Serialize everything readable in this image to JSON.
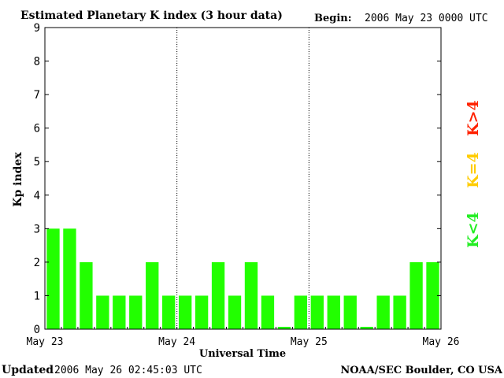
{
  "header": {
    "title": "Estimated Planetary K index (3 hour data)",
    "begin_label": "Begin:",
    "begin_value": "2006 May 23 0000 UTC"
  },
  "footer": {
    "updated_label": "Updated",
    "updated_value": "2006 May 26 02:45:03 UTC",
    "credit": "NOAA/SEC Boulder, CO USA"
  },
  "legend": {
    "above": {
      "label": "K>4",
      "color": "#ff2200"
    },
    "equal": {
      "label": "K=4",
      "color": "#ffcc00"
    },
    "below": {
      "label": "K<4",
      "color": "#22ee22"
    }
  },
  "chart_data": {
    "type": "bar",
    "title": "Estimated Planetary K index (3 hour data)",
    "xlabel": "Universal Time",
    "ylabel": "Kp index",
    "ylim": [
      0,
      9
    ],
    "yticks": [
      "0",
      "1",
      "2",
      "3",
      "4",
      "5",
      "6",
      "7",
      "8",
      "9"
    ],
    "day_labels": [
      "May 23",
      "May 24",
      "May 25",
      "May 26"
    ],
    "interval_hours": 3,
    "values": [
      3,
      3,
      2,
      1,
      1,
      1,
      2,
      1,
      1,
      1,
      2,
      1,
      2,
      1,
      0,
      1,
      1,
      1,
      1,
      0,
      1,
      1,
      2,
      2
    ],
    "bar_color": "#22ff00",
    "day_separators": "dotted"
  }
}
